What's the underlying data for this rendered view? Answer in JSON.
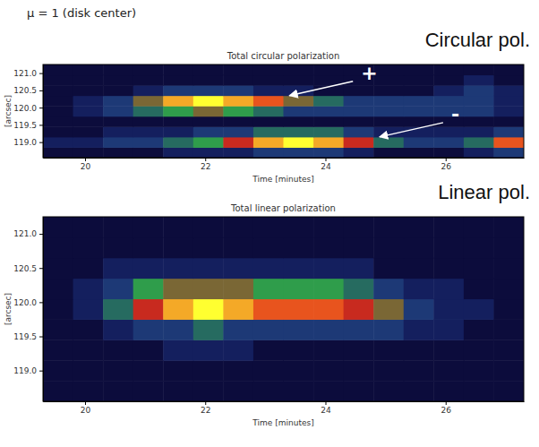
{
  "header": "μ = 1 (disk center)",
  "chart_data": [
    {
      "type": "heatmap",
      "panel_label": "Circular pol.",
      "title": "Total circular polarization",
      "x_label": "Time [minutes]",
      "y_label": "[arcsec]",
      "xlim": [
        19.3,
        27.3
      ],
      "ylim": [
        118.55,
        121.25
      ],
      "xticks": [
        20,
        22,
        24,
        26
      ],
      "yticks": [
        {
          "value": 119,
          "label": "119.0"
        },
        {
          "value": 119.5,
          "label": "119.5"
        },
        {
          "value": 120,
          "label": "120.0"
        },
        {
          "value": 120.5,
          "label": "120.5"
        },
        {
          "value": 121,
          "label": "121.0"
        }
      ],
      "x_edges": [
        19.3,
        19.8,
        20.3,
        20.8,
        21.3,
        21.8,
        22.3,
        22.8,
        23.3,
        23.8,
        24.3,
        24.8,
        25.3,
        25.8,
        26.3,
        26.8,
        27.3
      ],
      "y_edges": [
        118.55,
        118.85,
        119.15,
        119.45,
        119.75,
        120.05,
        120.35,
        120.65,
        120.95,
        121.25
      ],
      "z": [
        [
          1,
          1,
          1,
          1,
          2,
          2,
          2,
          3,
          3,
          3,
          2,
          1,
          1,
          1,
          2,
          3
        ],
        [
          2,
          2,
          3,
          3,
          4,
          5,
          7,
          9,
          10,
          9,
          7,
          4,
          3,
          3,
          4,
          8
        ],
        [
          1,
          1,
          2,
          2,
          2,
          3,
          3,
          4,
          4,
          4,
          3,
          2,
          2,
          2,
          2,
          3
        ],
        [
          1,
          1,
          1,
          1,
          1,
          1,
          1,
          1,
          1,
          1,
          1,
          1,
          1,
          1,
          1,
          1
        ],
        [
          1,
          2,
          3,
          4,
          5,
          6,
          5,
          4,
          3,
          3,
          3,
          3,
          3,
          3,
          3,
          2
        ],
        [
          1,
          2,
          3,
          6,
          9,
          10,
          9,
          8,
          6,
          4,
          3,
          3,
          3,
          3,
          3,
          2
        ],
        [
          1,
          1,
          1,
          2,
          3,
          3,
          3,
          2,
          2,
          1,
          1,
          1,
          1,
          2,
          3,
          2
        ],
        [
          1,
          1,
          1,
          1,
          1,
          1,
          1,
          1,
          1,
          1,
          1,
          1,
          1,
          1,
          2,
          1
        ],
        [
          1,
          1,
          1,
          1,
          1,
          1,
          1,
          1,
          1,
          1,
          1,
          1,
          1,
          1,
          1,
          1
        ]
      ],
      "annotations": [
        {
          "text": "+",
          "x": 23.4,
          "y": 120.35
        },
        {
          "text": "-",
          "x": 24.9,
          "y": 119.15
        }
      ]
    },
    {
      "type": "heatmap",
      "panel_label": "Linear pol.",
      "title": "Total linear polarization",
      "x_label": "Time [minutes]",
      "y_label": "[arcsec]",
      "xlim": [
        19.3,
        27.3
      ],
      "ylim": [
        118.55,
        121.25
      ],
      "xticks": [
        20,
        22,
        24,
        26
      ],
      "yticks": [
        {
          "value": 119,
          "label": "119.0"
        },
        {
          "value": 119.5,
          "label": "119.5"
        },
        {
          "value": 120,
          "label": "120.0"
        },
        {
          "value": 120.5,
          "label": "120.5"
        },
        {
          "value": 121,
          "label": "121.0"
        }
      ],
      "x_edges": [
        19.3,
        19.8,
        20.3,
        20.8,
        21.3,
        21.8,
        22.3,
        22.8,
        23.3,
        23.8,
        24.3,
        24.8,
        25.3,
        25.8,
        26.3,
        26.8,
        27.3
      ],
      "y_edges": [
        118.55,
        118.85,
        119.15,
        119.45,
        119.75,
        120.05,
        120.35,
        120.65,
        120.95,
        121.25
      ],
      "z": [
        [
          1,
          1,
          1,
          1,
          1,
          1,
          1,
          1,
          1,
          1,
          1,
          1,
          1,
          1,
          1,
          1
        ],
        [
          1,
          1,
          1,
          1,
          1,
          1,
          1,
          1,
          1,
          1,
          1,
          1,
          1,
          1,
          1,
          1
        ],
        [
          1,
          1,
          1,
          1,
          2,
          2,
          2,
          1,
          1,
          1,
          1,
          1,
          1,
          1,
          1,
          1
        ],
        [
          1,
          1,
          2,
          3,
          3,
          4,
          3,
          3,
          3,
          3,
          3,
          3,
          2,
          2,
          1,
          1
        ],
        [
          1,
          2,
          4,
          7,
          9,
          10,
          9,
          8,
          8,
          8,
          7,
          6,
          3,
          2,
          2,
          1
        ],
        [
          1,
          2,
          3,
          5,
          6,
          6,
          6,
          5,
          5,
          5,
          4,
          3,
          2,
          2,
          1,
          1
        ],
        [
          1,
          1,
          2,
          2,
          2,
          2,
          2,
          2,
          2,
          2,
          2,
          1,
          1,
          1,
          1,
          1
        ],
        [
          1,
          1,
          1,
          1,
          1,
          1,
          1,
          1,
          1,
          1,
          1,
          1,
          1,
          1,
          1,
          1
        ],
        [
          1,
          1,
          1,
          1,
          1,
          1,
          1,
          1,
          1,
          1,
          1,
          1,
          1,
          1,
          1,
          1
        ]
      ]
    }
  ]
}
